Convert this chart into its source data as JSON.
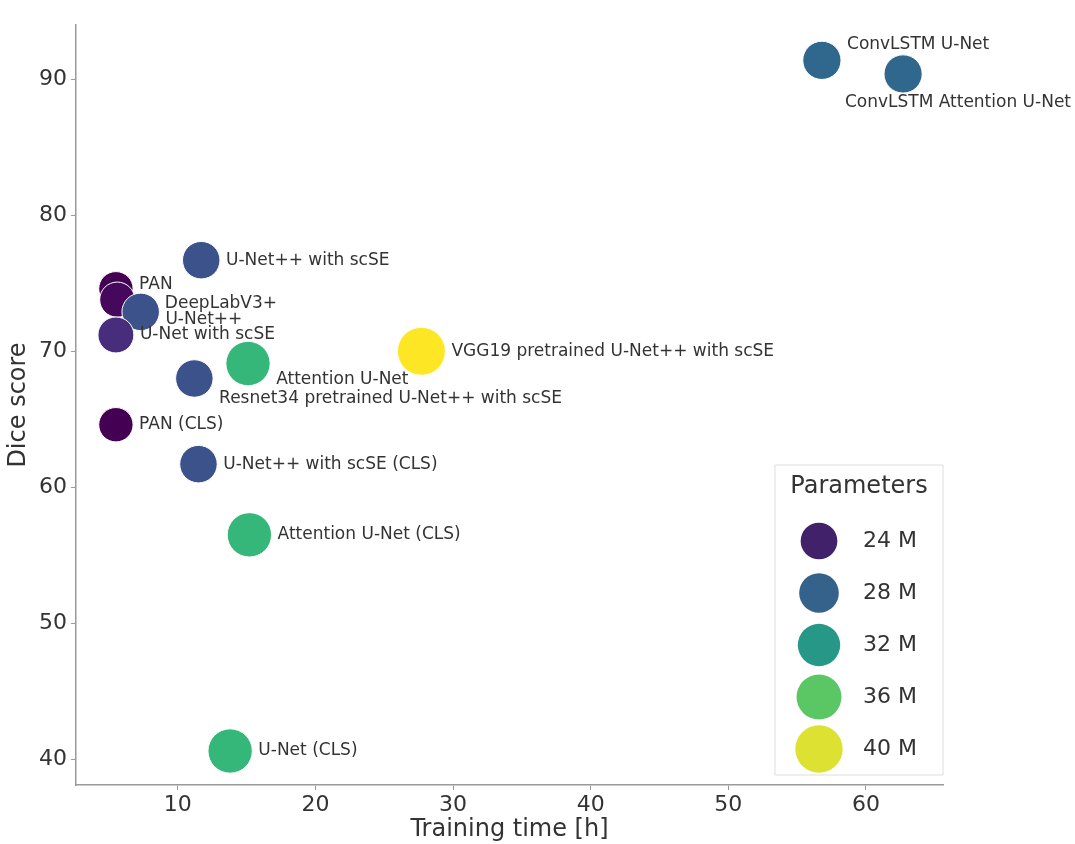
{
  "chart_data": {
    "type": "bubble",
    "xlabel": "Training time [h]",
    "ylabel": "Dice score",
    "legend_title": "Parameters",
    "xlim": [
      2.6,
      65.6
    ],
    "xticks": [
      10,
      20,
      30,
      40,
      50,
      60
    ],
    "ylim": [
      38.1,
      94
    ],
    "yticks": [
      40,
      50,
      60,
      70,
      80,
      90
    ],
    "x": [
      56.8,
      62.7,
      11.7,
      5.5,
      5.6,
      7.3,
      5.5,
      27.7,
      15.1,
      11.2,
      5.5,
      11.5,
      15.2,
      13.8
    ],
    "values": [
      91.4,
      90.4,
      76.7,
      74.6,
      73.8,
      72.9,
      71.2,
      70.0,
      69.1,
      68.0,
      64.6,
      61.7,
      56.5,
      40.6
    ],
    "sizes": [
      26,
      26,
      25,
      21,
      22,
      25,
      23,
      41,
      35,
      25,
      21,
      25,
      35,
      35
    ],
    "colors": [
      "#30678d",
      "#30678d",
      "#3b528b",
      "#440154",
      "#46085c",
      "#3b528b",
      "#472d7b",
      "#fde725",
      "#35b779",
      "#3b528b",
      "#440154",
      "#3b528b",
      "#35b779",
      "#35b779"
    ],
    "size_legend": [
      {
        "value": 24,
        "label": "24 M"
      },
      {
        "value": 28,
        "label": "28 M"
      },
      {
        "value": 32,
        "label": "32 M"
      },
      {
        "value": 36,
        "label": "36 M"
      },
      {
        "value": 40,
        "label": "40 M"
      }
    ],
    "grid": false,
    "annotations": [
      {
        "text": "ConvLSTM U-Net",
        "x": 56.8,
        "y": 91.4
      },
      {
        "text": "ConvLSTM Attention U-Net",
        "x": 62.7,
        "y": 90.4
      },
      {
        "text": "U-Net++ with scSE",
        "x": 11.7,
        "y": 76.7
      },
      {
        "text": "PAN",
        "x": 5.5,
        "y": 74.6
      },
      {
        "text": "DeepLabV3+",
        "x": 5.6,
        "y": 73.8
      },
      {
        "text": "U-Net++",
        "x": 7.3,
        "y": 72.9
      },
      {
        "text": "U-Net with scSE",
        "x": 5.5,
        "y": 71.2
      },
      {
        "text": "VGG19 pretrained U-Net++ with scSE",
        "x": 27.7,
        "y": 70.0
      },
      {
        "text": "Attention U-Net",
        "x": 15.1,
        "y": 69.1
      },
      {
        "text": "Resnet34 pretrained U-Net++ with scSE",
        "x": 11.2,
        "y": 68.0
      },
      {
        "text": "PAN (CLS)",
        "x": 5.5,
        "y": 64.6
      },
      {
        "text": "U-Net++ with scSE (CLS)",
        "x": 11.5,
        "y": 61.7
      },
      {
        "text": "Attention U-Net (CLS)",
        "x": 15.2,
        "y": 56.5
      },
      {
        "text": "U-Net (CLS)",
        "x": 13.8,
        "y": 40.6
      }
    ]
  }
}
